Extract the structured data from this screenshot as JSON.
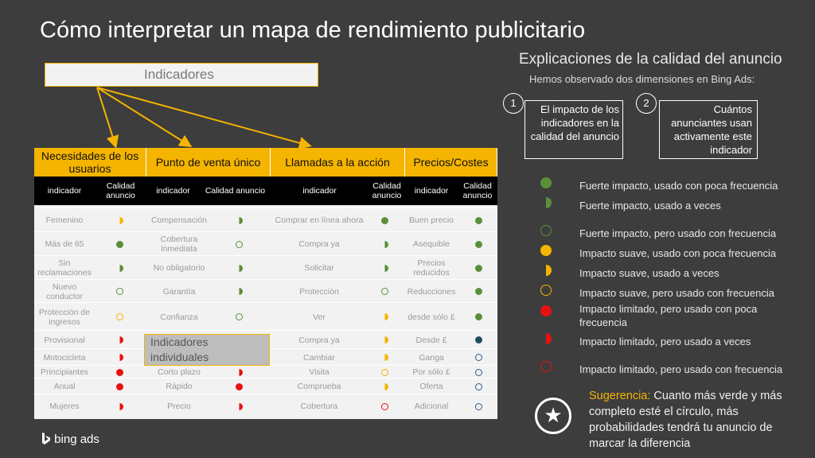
{
  "title": "Cómo interpretar un mapa de rendimiento publicitario",
  "indicators_label": "Indicadores",
  "individual_label": "Indicadores individuales",
  "table": {
    "groups": [
      "Necesidades de los usuarios",
      "Punto de venta único",
      "Llamadas a la acción",
      "Precios/Costes"
    ],
    "subheaders": [
      "indicador",
      "Calidad anuncio",
      "indicador",
      "Calidad anuncio",
      "indicador",
      "Calidad anuncio",
      "indicador",
      "Calidad anuncio"
    ],
    "rows": [
      [
        "Femenino",
        "Compensación",
        "Comprar en línea ahora",
        "Buen precio"
      ],
      [
        "Más de 65",
        "Cobertura inmediata",
        "Compra ya",
        "Asequible"
      ],
      [
        "Sin reclamaciones",
        "No obligatorio",
        "Solicitar",
        "Precios reducidos"
      ],
      [
        "Nuevo conductor",
        "Garantía",
        "Protección",
        "Reducciones"
      ],
      [
        "Protección de ingresos",
        "Confianza",
        "Ver",
        "desde sólo £"
      ],
      [
        "Provisional",
        "",
        "Compra ya",
        "Desde £"
      ],
      [
        "Motocicleta",
        "",
        "Cambiar",
        "Ganga"
      ],
      [
        "Principiantes",
        "Corto plazo",
        "Visita",
        "Por sólo £"
      ],
      [
        "Anual",
        "Rápido",
        "Comprueba",
        "Oferta"
      ],
      [
        "Mujeres",
        "Precio",
        "Cobertura",
        "Adicional"
      ]
    ],
    "quality": [
      [
        "half-yellow",
        "half-green",
        "green",
        "green"
      ],
      [
        "green",
        "open-green",
        "half-green",
        "green"
      ],
      [
        "half-green",
        "half-green",
        "half-green",
        "green"
      ],
      [
        "open-green",
        "half-green",
        "open-green",
        "green"
      ],
      [
        "open-yellow",
        "open-green",
        "half-yellow",
        "green"
      ],
      [
        "half-red",
        "",
        "half-yellow",
        "dark-teal"
      ],
      [
        "half-red",
        "",
        "half-yellow",
        "open-blue"
      ],
      [
        "red",
        "half-red",
        "open-yellow",
        "open-blue"
      ],
      [
        "red",
        "red",
        "half-yellow",
        "open-blue"
      ],
      [
        "half-red",
        "half-red",
        "open-red",
        "open-blue"
      ]
    ]
  },
  "right": {
    "title": "Explicaciones de la calidad del anuncio",
    "subtitle": "Hemos observado dos dimensiones en Bing Ads:",
    "dimensions": [
      {
        "number": "1",
        "text": "El impacto de los indicadores en la calidad del anuncio"
      },
      {
        "number": "2",
        "text": "Cuántos anunciantes usan activamente este indicador"
      }
    ]
  },
  "legend": [
    {
      "icon": "green",
      "text": "Fuerte impacto, usado con poca frecuencia"
    },
    {
      "icon": "half-green",
      "text": "Fuerte impacto, usado a veces"
    },
    {
      "icon": "open-green",
      "text": "Fuerte impacto, pero usado con frecuencia"
    },
    {
      "icon": "yellow",
      "text": "Impacto suave, usado con poca frecuencia"
    },
    {
      "icon": "half-yellow",
      "text": "Impacto suave, usado a veces"
    },
    {
      "icon": "open-yellow",
      "text": "Impacto suave, pero usado con frecuencia"
    },
    {
      "icon": "red",
      "text": "Impacto limitado, pero usado con poca frecuencia"
    },
    {
      "icon": "half-red",
      "text": "Impacto limitado, pero usado a veces"
    },
    {
      "icon": "open-red",
      "text": "Impacto limitado, pero usado con frecuencia"
    }
  ],
  "tip": {
    "label": "Sugerencia:",
    "text": "Cuanto más verde y más completo esté el círculo, más probabilidades tendrá tu anuncio de marcar la diferencia"
  },
  "logo": "bing ads",
  "colors": {
    "green": "#5a8f3a",
    "yellow": "#f5b400",
    "red": "#e81010",
    "header": "#f5b400",
    "teal": "#1f4e5a",
    "blue": "#2e5b8a"
  }
}
